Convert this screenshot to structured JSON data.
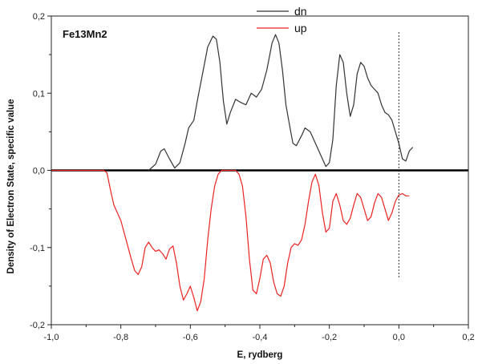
{
  "chart_data": {
    "type": "line",
    "annotation": "Fe13Mn2",
    "xlabel": "E, rydberg",
    "ylabel": "Density of Electron State, specific value",
    "xlim": [
      -1.0,
      0.2
    ],
    "ylim": [
      -0.2,
      0.2
    ],
    "x_ticks": [
      "-1,0",
      "-0,8",
      "-0,6",
      "-0,4",
      "-0,2",
      "0,0",
      "0,2"
    ],
    "y_ticks": [
      "-0,2",
      "-0,1",
      "0,0",
      "0,1",
      "0,2"
    ],
    "x_tick_values": [
      -1.0,
      -0.8,
      -0.6,
      -0.4,
      -0.2,
      0.0,
      0.2
    ],
    "y_tick_values": [
      -0.2,
      -0.1,
      0.0,
      0.1,
      0.2
    ],
    "fermi_level": 0.0,
    "legend_position": "top-center",
    "series": [
      {
        "name": "dn",
        "color": "#333333",
        "points": [
          [
            -0.72,
            0.0
          ],
          [
            -0.7,
            0.008
          ],
          [
            -0.685,
            0.025
          ],
          [
            -0.675,
            0.028
          ],
          [
            -0.66,
            0.015
          ],
          [
            -0.645,
            0.003
          ],
          [
            -0.63,
            0.01
          ],
          [
            -0.615,
            0.035
          ],
          [
            -0.605,
            0.055
          ],
          [
            -0.59,
            0.065
          ],
          [
            -0.58,
            0.09
          ],
          [
            -0.565,
            0.125
          ],
          [
            -0.55,
            0.16
          ],
          [
            -0.535,
            0.174
          ],
          [
            -0.525,
            0.17
          ],
          [
            -0.515,
            0.14
          ],
          [
            -0.505,
            0.09
          ],
          [
            -0.495,
            0.06
          ],
          [
            -0.485,
            0.075
          ],
          [
            -0.47,
            0.092
          ],
          [
            -0.455,
            0.088
          ],
          [
            -0.44,
            0.085
          ],
          [
            -0.425,
            0.1
          ],
          [
            -0.41,
            0.095
          ],
          [
            -0.395,
            0.105
          ],
          [
            -0.38,
            0.13
          ],
          [
            -0.365,
            0.165
          ],
          [
            -0.355,
            0.176
          ],
          [
            -0.345,
            0.165
          ],
          [
            -0.335,
            0.13
          ],
          [
            -0.325,
            0.085
          ],
          [
            -0.315,
            0.06
          ],
          [
            -0.305,
            0.035
          ],
          [
            -0.295,
            0.032
          ],
          [
            -0.28,
            0.045
          ],
          [
            -0.27,
            0.055
          ],
          [
            -0.255,
            0.05
          ],
          [
            -0.24,
            0.035
          ],
          [
            -0.225,
            0.02
          ],
          [
            -0.21,
            0.005
          ],
          [
            -0.2,
            0.01
          ],
          [
            -0.19,
            0.04
          ],
          [
            -0.18,
            0.11
          ],
          [
            -0.17,
            0.15
          ],
          [
            -0.16,
            0.14
          ],
          [
            -0.15,
            0.1
          ],
          [
            -0.14,
            0.07
          ],
          [
            -0.13,
            0.085
          ],
          [
            -0.12,
            0.125
          ],
          [
            -0.11,
            0.14
          ],
          [
            -0.1,
            0.135
          ],
          [
            -0.09,
            0.12
          ],
          [
            -0.08,
            0.11
          ],
          [
            -0.07,
            0.105
          ],
          [
            -0.06,
            0.1
          ],
          [
            -0.05,
            0.085
          ],
          [
            -0.04,
            0.075
          ],
          [
            -0.03,
            0.072
          ],
          [
            -0.02,
            0.065
          ],
          [
            -0.01,
            0.05
          ],
          [
            0.0,
            0.035
          ],
          [
            0.01,
            0.015
          ],
          [
            0.02,
            0.012
          ],
          [
            0.03,
            0.025
          ],
          [
            0.04,
            0.03
          ]
        ]
      },
      {
        "name": "up",
        "color": "#ee2222",
        "points": [
          [
            -1.0,
            0.0
          ],
          [
            -0.85,
            0.0
          ],
          [
            -0.84,
            -0.003
          ],
          [
            -0.83,
            -0.025
          ],
          [
            -0.82,
            -0.045
          ],
          [
            -0.81,
            -0.055
          ],
          [
            -0.8,
            -0.065
          ],
          [
            -0.785,
            -0.09
          ],
          [
            -0.77,
            -0.115
          ],
          [
            -0.76,
            -0.13
          ],
          [
            -0.75,
            -0.135
          ],
          [
            -0.74,
            -0.125
          ],
          [
            -0.73,
            -0.1
          ],
          [
            -0.72,
            -0.093
          ],
          [
            -0.71,
            -0.1
          ],
          [
            -0.7,
            -0.105
          ],
          [
            -0.69,
            -0.103
          ],
          [
            -0.68,
            -0.108
          ],
          [
            -0.67,
            -0.115
          ],
          [
            -0.66,
            -0.102
          ],
          [
            -0.65,
            -0.098
          ],
          [
            -0.64,
            -0.12
          ],
          [
            -0.63,
            -0.15
          ],
          [
            -0.62,
            -0.168
          ],
          [
            -0.61,
            -0.16
          ],
          [
            -0.6,
            -0.15
          ],
          [
            -0.59,
            -0.165
          ],
          [
            -0.58,
            -0.182
          ],
          [
            -0.57,
            -0.17
          ],
          [
            -0.56,
            -0.14
          ],
          [
            -0.55,
            -0.09
          ],
          [
            -0.54,
            -0.05
          ],
          [
            -0.53,
            -0.02
          ],
          [
            -0.52,
            -0.005
          ],
          [
            -0.51,
            0.0
          ],
          [
            -0.47,
            0.0
          ],
          [
            -0.46,
            -0.005
          ],
          [
            -0.45,
            -0.02
          ],
          [
            -0.44,
            -0.06
          ],
          [
            -0.43,
            -0.115
          ],
          [
            -0.42,
            -0.155
          ],
          [
            -0.41,
            -0.16
          ],
          [
            -0.4,
            -0.14
          ],
          [
            -0.39,
            -0.115
          ],
          [
            -0.38,
            -0.11
          ],
          [
            -0.37,
            -0.12
          ],
          [
            -0.36,
            -0.145
          ],
          [
            -0.35,
            -0.16
          ],
          [
            -0.34,
            -0.163
          ],
          [
            -0.33,
            -0.15
          ],
          [
            -0.32,
            -0.12
          ],
          [
            -0.31,
            -0.1
          ],
          [
            -0.3,
            -0.095
          ],
          [
            -0.29,
            -0.097
          ],
          [
            -0.28,
            -0.09
          ],
          [
            -0.27,
            -0.07
          ],
          [
            -0.26,
            -0.04
          ],
          [
            -0.25,
            -0.015
          ],
          [
            -0.24,
            -0.005
          ],
          [
            -0.23,
            -0.02
          ],
          [
            -0.22,
            -0.055
          ],
          [
            -0.21,
            -0.08
          ],
          [
            -0.2,
            -0.075
          ],
          [
            -0.19,
            -0.04
          ],
          [
            -0.18,
            -0.03
          ],
          [
            -0.17,
            -0.045
          ],
          [
            -0.16,
            -0.065
          ],
          [
            -0.15,
            -0.07
          ],
          [
            -0.14,
            -0.062
          ],
          [
            -0.13,
            -0.045
          ],
          [
            -0.12,
            -0.03
          ],
          [
            -0.11,
            -0.035
          ],
          [
            -0.1,
            -0.05
          ],
          [
            -0.09,
            -0.065
          ],
          [
            -0.08,
            -0.06
          ],
          [
            -0.07,
            -0.042
          ],
          [
            -0.06,
            -0.03
          ],
          [
            -0.05,
            -0.035
          ],
          [
            -0.04,
            -0.05
          ],
          [
            -0.03,
            -0.065
          ],
          [
            -0.02,
            -0.055
          ],
          [
            -0.01,
            -0.04
          ],
          [
            0.0,
            -0.032
          ],
          [
            0.01,
            -0.03
          ],
          [
            0.02,
            -0.033
          ],
          [
            0.03,
            -0.033
          ]
        ]
      }
    ]
  }
}
